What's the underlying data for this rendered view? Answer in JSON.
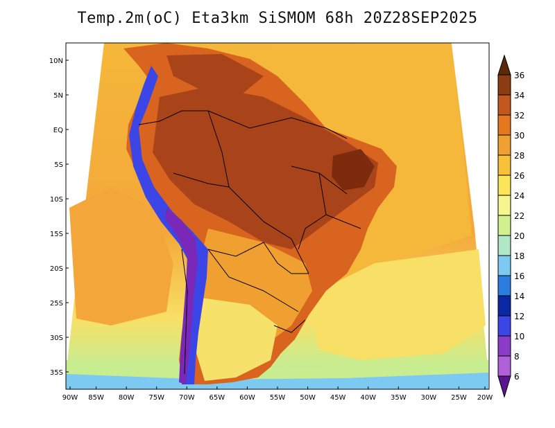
{
  "title": "Temp.2m(oC) Eta3km SiSMOM 68h 20Z28SEP2025",
  "map": {
    "lon_range": [
      -90,
      -20
    ],
    "lat_range": [
      -37.5,
      12.5
    ],
    "lon_ticks": [
      {
        "value": -90,
        "label": "90W"
      },
      {
        "value": -85,
        "label": "85W"
      },
      {
        "value": -80,
        "label": "80W"
      },
      {
        "value": -75,
        "label": "75W"
      },
      {
        "value": -70,
        "label": "70W"
      },
      {
        "value": -65,
        "label": "65W"
      },
      {
        "value": -60,
        "label": "60W"
      },
      {
        "value": -55,
        "label": "55W"
      },
      {
        "value": -50,
        "label": "50W"
      },
      {
        "value": -45,
        "label": "45W"
      },
      {
        "value": -40,
        "label": "40W"
      },
      {
        "value": -35,
        "label": "35W"
      },
      {
        "value": -30,
        "label": "30W"
      },
      {
        "value": -25,
        "label": "25W"
      },
      {
        "value": -20,
        "label": "20W"
      }
    ],
    "lat_ticks": [
      {
        "value": 10,
        "label": "10N"
      },
      {
        "value": 5,
        "label": "5N"
      },
      {
        "value": 0,
        "label": "EQ"
      },
      {
        "value": -5,
        "label": "5S"
      },
      {
        "value": -10,
        "label": "10S"
      },
      {
        "value": -15,
        "label": "15S"
      },
      {
        "value": -20,
        "label": "20S"
      },
      {
        "value": -25,
        "label": "25S"
      },
      {
        "value": -30,
        "label": "30S"
      },
      {
        "value": -35,
        "label": "35S"
      }
    ]
  },
  "colorbar": {
    "levels": [
      "36",
      "34",
      "32",
      "30",
      "28",
      "26",
      "24",
      "22",
      "20",
      "18",
      "16",
      "14",
      "12",
      "10",
      "8",
      "6"
    ],
    "colors": [
      "#5a2a08",
      "#8c3c10",
      "#c4571b",
      "#e4781e",
      "#f0a030",
      "#f7c238",
      "#fbe65a",
      "#f6f58e",
      "#d2f08e",
      "#aee8c8",
      "#7ccaf2",
      "#2a7ee0",
      "#0a28a4",
      "#3c46e6",
      "#8a3cc8",
      "#b060d8",
      "#5a1490"
    ]
  },
  "colors": {
    "ocean_far": "#f5b83a",
    "ocean_mid": "#f3a73a",
    "ocean_south": "#f8e066",
    "ocean_cold": "#c8ec90",
    "ocean_frigid": "#7ccaf2",
    "amazon": "#a9441a",
    "amazon_hot": "#7c2c0c",
    "land_warm": "#d9641f",
    "plains": "#f0a030",
    "pampas": "#f6e26a",
    "andes_cold": "#3c46e6",
    "andes_peak": "#7a28b8",
    "border": "#000000"
  }
}
